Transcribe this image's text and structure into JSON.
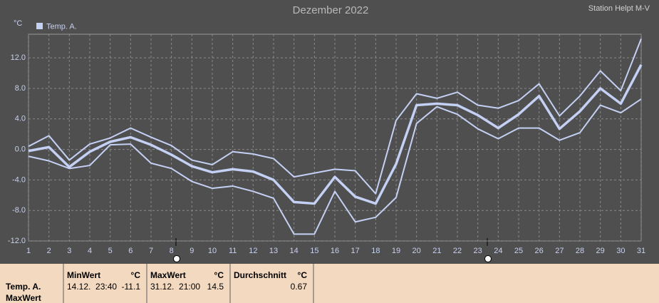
{
  "chart_data": {
    "type": "line",
    "title": "Dezember 2022",
    "station": "Station Helpt M-V",
    "y_unit": "°C",
    "x": [
      1,
      2,
      3,
      4,
      5,
      6,
      7,
      8,
      9,
      10,
      11,
      12,
      13,
      14,
      15,
      16,
      17,
      18,
      19,
      20,
      21,
      22,
      23,
      24,
      25,
      26,
      27,
      28,
      29,
      30,
      31
    ],
    "xlim": [
      1,
      31
    ],
    "xticks": [
      1,
      2,
      3,
      4,
      5,
      6,
      7,
      8,
      9,
      10,
      11,
      12,
      13,
      14,
      15,
      16,
      17,
      18,
      19,
      20,
      21,
      22,
      23,
      24,
      25,
      26,
      27,
      28,
      29,
      30,
      31
    ],
    "ylim": [
      -12,
      15.1
    ],
    "yticks": [
      {
        "value": -12,
        "label": "-12.0"
      },
      {
        "value": -8,
        "label": "-8.0"
      },
      {
        "value": -4,
        "label": "-4.0"
      },
      {
        "value": 0,
        "label": "0.0"
      },
      {
        "value": 4,
        "label": "4.0"
      },
      {
        "value": 8,
        "label": "8.0"
      },
      {
        "value": 12,
        "label": "12.0"
      }
    ],
    "grid": true,
    "series": [
      {
        "name": "Temp. A.",
        "color": "#c4d0f4",
        "values": [
          -0.2,
          0.3,
          -2.3,
          -0.3,
          1.0,
          1.6,
          0.6,
          -0.7,
          -2.2,
          -3.0,
          -2.6,
          -2.9,
          -4.0,
          -6.9,
          -7.1,
          -3.6,
          -6.2,
          -7.1,
          -1.9,
          5.8,
          6.0,
          5.8,
          4.5,
          2.8,
          4.6,
          7.0,
          2.7,
          5.0,
          8.0,
          6.0,
          11.1
        ],
        "upper": [
          0.4,
          1.8,
          -1.4,
          0.7,
          1.5,
          2.8,
          1.6,
          0.5,
          -1.4,
          -2.0,
          -0.3,
          -0.6,
          -1.2,
          -3.6,
          -3.1,
          -2.6,
          -2.8,
          -5.8,
          3.8,
          7.3,
          6.7,
          7.5,
          5.8,
          5.4,
          6.4,
          8.6,
          4.4,
          7.0,
          10.3,
          7.7,
          14.5
        ],
        "lower": [
          -0.9,
          -1.5,
          -2.5,
          -2.1,
          0.6,
          0.7,
          -1.8,
          -2.5,
          -4.2,
          -5.1,
          -4.8,
          -5.5,
          -6.4,
          -11.1,
          -11.1,
          -5.5,
          -9.5,
          -8.9,
          -6.3,
          3.4,
          5.6,
          4.6,
          2.7,
          1.4,
          2.8,
          2.8,
          1.2,
          2.2,
          5.8,
          4.8,
          6.6
        ]
      }
    ]
  },
  "table": {
    "row_label": [
      "Temp. A.",
      "MaxWert"
    ],
    "columns": [
      {
        "header": "MinWert",
        "unit": "°C",
        "date": "14.12.  23:40",
        "value": "-11.1"
      },
      {
        "header": "MaxWert",
        "unit": "°C",
        "date": "31.12.  21:00",
        "value": "14.5"
      },
      {
        "header": "Durchschnitt",
        "unit": "°C",
        "date": "",
        "value": "0.67"
      }
    ]
  }
}
